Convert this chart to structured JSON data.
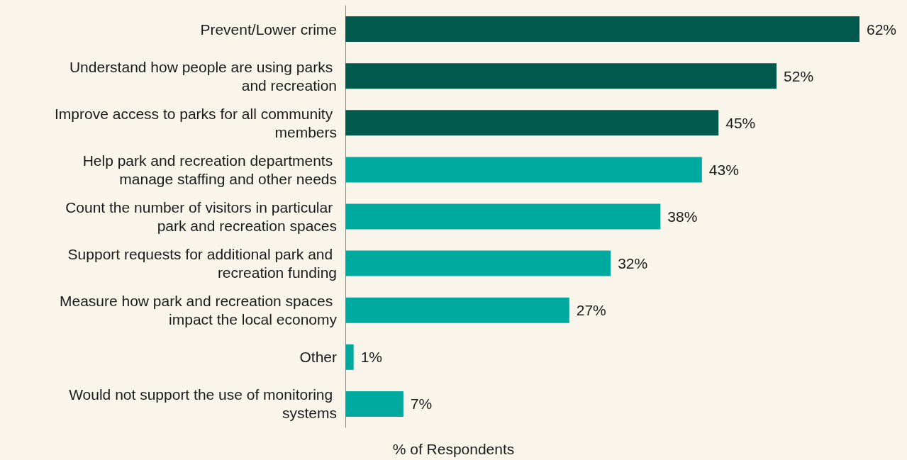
{
  "chart_data": {
    "type": "bar",
    "orientation": "horizontal",
    "xlabel": "% of Respondents",
    "categories": [
      "Prevent/Lower crime",
      "Understand how people are using parks and recreation",
      "Improve access to parks for all community members",
      "Help park and recreation departments manage staffing and other needs",
      "Count the number of visitors in particular park and recreation spaces",
      "Support requests for additional park and recreation funding",
      "Measure how park and recreation spaces impact the local economy",
      "Other",
      "Would not support the use of monitoring systems"
    ],
    "values": [
      62,
      52,
      45,
      43,
      38,
      32,
      27,
      1,
      7
    ],
    "value_labels": [
      "62%",
      "52%",
      "45%",
      "43%",
      "38%",
      "32%",
      "27%",
      "1%",
      "7%"
    ],
    "colors": [
      "#00594c",
      "#00594c",
      "#00594c",
      "#00a99d",
      "#00a99d",
      "#00a99d",
      "#00a99d",
      "#00a99d",
      "#00a99d"
    ],
    "tick_labels": "y"
  }
}
